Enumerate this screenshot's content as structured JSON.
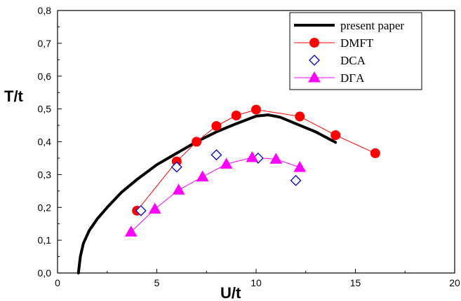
{
  "chart_data": {
    "type": "line",
    "xlabel": "U/t",
    "ylabel": "T/t",
    "xlim": [
      0,
      20
    ],
    "ylim": [
      0,
      0.8
    ],
    "x_ticks": [
      "0",
      "5",
      "10",
      "15",
      "20"
    ],
    "y_ticks": [
      "0,0",
      "0,1",
      "0,2",
      "0,3",
      "0,4",
      "0,5",
      "0,6",
      "0,7",
      "0,8"
    ],
    "legend_position": "top-right",
    "series": [
      {
        "name": "present paper",
        "color": "#000000",
        "marker": "none",
        "points": [
          [
            1.05,
            0.0
          ],
          [
            1.15,
            0.05
          ],
          [
            1.3,
            0.09
          ],
          [
            1.6,
            0.13
          ],
          [
            2.0,
            0.165
          ],
          [
            2.5,
            0.2
          ],
          [
            3.2,
            0.245
          ],
          [
            4.0,
            0.285
          ],
          [
            5.0,
            0.33
          ],
          [
            6.0,
            0.365
          ],
          [
            7.0,
            0.4
          ],
          [
            8.0,
            0.43
          ],
          [
            9.0,
            0.455
          ],
          [
            10.0,
            0.478
          ],
          [
            10.6,
            0.482
          ],
          [
            11.2,
            0.475
          ],
          [
            12.0,
            0.455
          ],
          [
            13.0,
            0.43
          ],
          [
            14.0,
            0.398
          ]
        ]
      },
      {
        "name": "DMFT",
        "color": "#ff0000",
        "marker": "circle",
        "points": [
          [
            4.0,
            0.19
          ],
          [
            6.0,
            0.34
          ],
          [
            7.0,
            0.4
          ],
          [
            8.0,
            0.448
          ],
          [
            9.0,
            0.48
          ],
          [
            10.0,
            0.498
          ],
          [
            12.2,
            0.477
          ],
          [
            14.0,
            0.42
          ],
          [
            16.0,
            0.365
          ]
        ]
      },
      {
        "name": "DCA",
        "color": "#0000cc",
        "marker": "diamond",
        "points": [
          [
            4.2,
            0.19
          ],
          [
            6.0,
            0.323
          ],
          [
            8.0,
            0.36
          ],
          [
            10.1,
            0.35
          ],
          [
            12.0,
            0.282
          ]
        ]
      },
      {
        "name": "DΓA",
        "color": "#ff00ff",
        "marker": "triangle",
        "points": [
          [
            3.7,
            0.125
          ],
          [
            4.9,
            0.195
          ],
          [
            6.1,
            0.253
          ],
          [
            7.3,
            0.293
          ],
          [
            8.5,
            0.332
          ],
          [
            9.8,
            0.352
          ],
          [
            11.0,
            0.347
          ],
          [
            12.2,
            0.322
          ]
        ]
      }
    ]
  }
}
